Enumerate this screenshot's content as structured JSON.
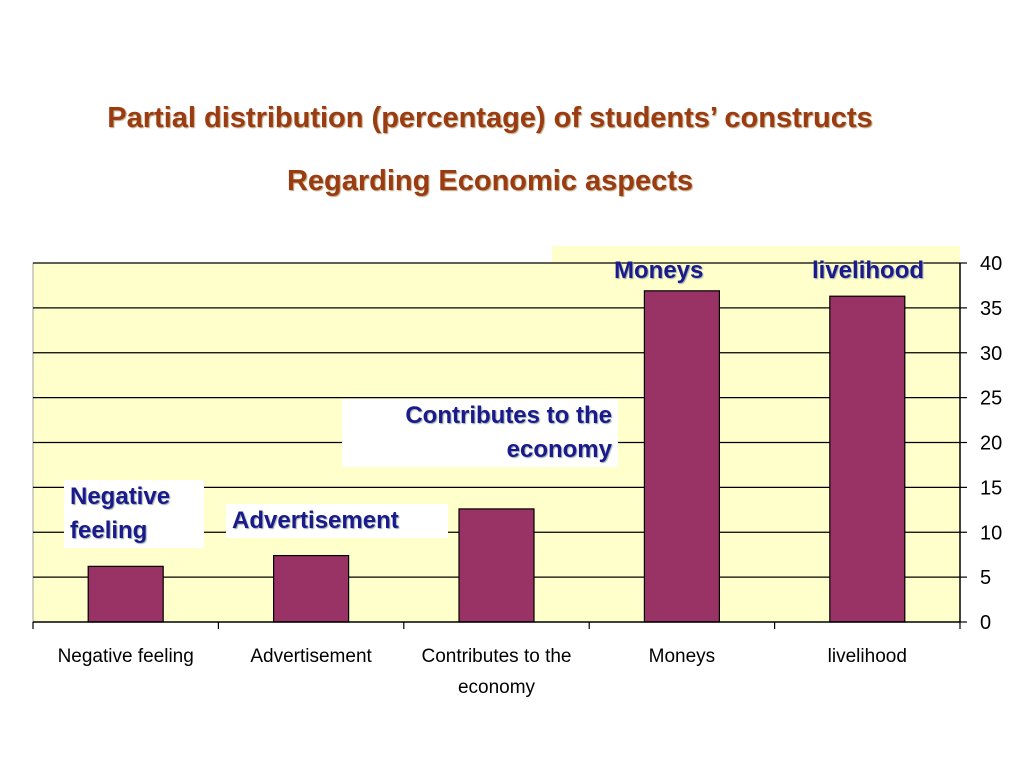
{
  "slide": {
    "title_line1": "Partial distribution (percentage) of students’ constructs",
    "title_line2": "Regarding Economic aspects"
  },
  "colors": {
    "plot_background": "#ffffcc",
    "bar": "#993366",
    "title": "#9a3b12",
    "callout_text": "#1a1a8c"
  },
  "chart_data": {
    "type": "bar",
    "categories": [
      "Negative feeling",
      "Advertisement",
      "Contributes to the economy",
      "Moneys",
      "livelihood"
    ],
    "values": [
      6.2,
      7.4,
      12.6,
      36.9,
      36.3
    ],
    "ylim": [
      0,
      40
    ],
    "yticks": [
      0,
      5,
      10,
      15,
      20,
      25,
      30,
      35,
      40
    ],
    "y_axis_side": "right",
    "grid": true,
    "legend": "none",
    "callouts": [
      "Negative feeling",
      "Advertisement",
      "Contributes to the economy",
      "Moneys",
      "livelihood"
    ]
  }
}
